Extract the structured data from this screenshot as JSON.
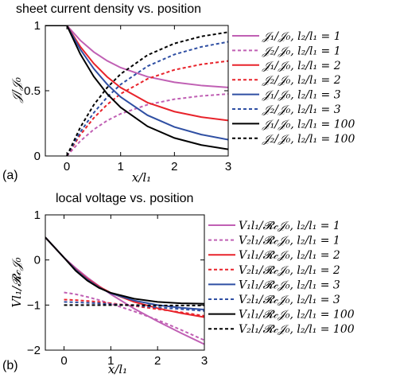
{
  "chart_data": [
    {
      "type": "line",
      "panel_label": "(a)",
      "title": "sheet current density vs. position",
      "xlabel": "x/l₁",
      "ylabel": "𝒥/𝒥₀",
      "xlim": [
        -0.4,
        3
      ],
      "ylim": [
        0,
        1
      ],
      "xticks": [
        0,
        1,
        2,
        3
      ],
      "yticks": [
        0,
        0.5,
        1
      ],
      "ytick_labels": [
        "0",
        "0.5",
        "1"
      ],
      "legend_position": "right",
      "grid": false,
      "series": [
        {
          "name": "𝒥₁/𝒥₀, l₂/l₁ = 1",
          "color": "#c060b4",
          "dash": "solid",
          "x": [
            -0.4,
            0,
            0.25,
            0.5,
            0.75,
            1,
            1.5,
            2,
            2.5,
            3
          ],
          "y": [
            1,
            1,
            0.886,
            0.797,
            0.729,
            0.677,
            0.607,
            0.565,
            0.54,
            0.525
          ]
        },
        {
          "name": "𝒥₂/𝒥₀, l₂/l₁ = 1",
          "color": "#c060b4",
          "dash": "dashed",
          "x": [
            0,
            0.25,
            0.5,
            0.75,
            1,
            1.5,
            2,
            2.5,
            3
          ],
          "y": [
            0,
            0.114,
            0.203,
            0.271,
            0.323,
            0.393,
            0.435,
            0.46,
            0.475
          ]
        },
        {
          "name": "𝒥₁/𝒥₀, l₂/l₁ = 2",
          "color": "#e8232b",
          "dash": "solid",
          "x": [
            -0.4,
            0,
            0.25,
            0.5,
            0.75,
            1,
            1.5,
            2,
            2.5,
            3
          ],
          "y": [
            1,
            1,
            0.838,
            0.709,
            0.606,
            0.524,
            0.409,
            0.34,
            0.298,
            0.272
          ]
        },
        {
          "name": "𝒥₂/𝒥₀, l₂/l₁ = 2",
          "color": "#e8232b",
          "dash": "dashed",
          "x": [
            0,
            0.25,
            0.5,
            0.75,
            1,
            1.5,
            2,
            2.5,
            3
          ],
          "y": [
            0,
            0.162,
            0.291,
            0.394,
            0.476,
            0.591,
            0.66,
            0.702,
            0.728
          ]
        },
        {
          "name": "𝒥₁/𝒥₀, l₂/l₁ = 3",
          "color": "#2f4fa3",
          "dash": "solid",
          "x": [
            -0.4,
            0,
            0.25,
            0.5,
            0.75,
            1,
            1.5,
            2,
            2.5,
            3
          ],
          "y": [
            1,
            1,
            0.817,
            0.669,
            0.549,
            0.452,
            0.312,
            0.222,
            0.164,
            0.125
          ]
        },
        {
          "name": "𝒥₂/𝒥₀, l₂/l₁ = 3",
          "color": "#2f4fa3",
          "dash": "dashed",
          "x": [
            0,
            0.25,
            0.5,
            0.75,
            1,
            1.5,
            2,
            2.5,
            3
          ],
          "y": [
            0,
            0.183,
            0.331,
            0.451,
            0.548,
            0.688,
            0.778,
            0.836,
            0.875
          ]
        },
        {
          "name": "𝒥₁/𝒥₀, l₂/l₁ = 100",
          "color": "#000000",
          "dash": "solid",
          "x": [
            -0.4,
            0,
            0.25,
            0.5,
            0.75,
            1,
            1.5,
            2,
            2.5,
            3
          ],
          "y": [
            1,
            1,
            0.781,
            0.609,
            0.476,
            0.372,
            0.227,
            0.138,
            0.084,
            0.051
          ]
        },
        {
          "name": "𝒥₂/𝒥₀, l₂/l₁ = 100",
          "color": "#000000",
          "dash": "dashed",
          "x": [
            0,
            0.25,
            0.5,
            0.75,
            1,
            1.5,
            2,
            2.5,
            3
          ],
          "y": [
            0,
            0.219,
            0.391,
            0.524,
            0.628,
            0.773,
            0.862,
            0.916,
            0.949
          ]
        }
      ]
    },
    {
      "type": "line",
      "panel_label": "(b)",
      "title": "local voltage vs. position",
      "xlabel": "x/l₁",
      "ylabel": "Vl₁/𝓡𝒸𝒥₀",
      "xlim": [
        -0.4,
        3
      ],
      "ylim": [
        -2,
        1
      ],
      "xticks": [
        0,
        1,
        2,
        3
      ],
      "yticks": [
        -2,
        -1,
        0,
        1
      ],
      "ytick_labels": [
        "−2",
        "−1",
        "0",
        "1"
      ],
      "legend_position": "right",
      "grid": false,
      "series": [
        {
          "name": "V₁l₁/𝓡𝒸𝒥₀, l₂/l₁ = 1",
          "color": "#c060b4",
          "dash": "solid",
          "x": [
            -0.4,
            0,
            0.25,
            0.5,
            0.75,
            1,
            1.5,
            2,
            2.5,
            3
          ],
          "y": [
            0.5,
            0.05,
            -0.18,
            -0.39,
            -0.58,
            -0.76,
            -1.08,
            -1.36,
            -1.62,
            -1.87
          ]
        },
        {
          "name": "V₂l₁/𝓡𝒸𝒥₀, l₂/l₁ = 1",
          "color": "#c060b4",
          "dash": "dashed",
          "x": [
            0,
            0.25,
            0.5,
            0.75,
            1,
            1.5,
            2,
            2.5,
            3
          ],
          "y": [
            -0.72,
            -0.76,
            -0.82,
            -0.89,
            -0.97,
            -1.14,
            -1.33,
            -1.55,
            -1.78
          ]
        },
        {
          "name": "V₁l₁/𝓡𝒸𝒥₀, l₂/l₁ = 2",
          "color": "#e8232b",
          "dash": "solid",
          "x": [
            -0.4,
            0,
            0.25,
            0.5,
            0.75,
            1,
            1.5,
            2,
            2.5,
            3
          ],
          "y": [
            0.5,
            0.05,
            -0.21,
            -0.42,
            -0.59,
            -0.73,
            -0.93,
            -1.07,
            -1.18,
            -1.27
          ]
        },
        {
          "name": "V₂l₁/𝓡𝒸𝒥₀, l₂/l₁ = 2",
          "color": "#e8232b",
          "dash": "dashed",
          "x": [
            0,
            0.25,
            0.5,
            0.75,
            1,
            1.5,
            2,
            2.5,
            3
          ],
          "y": [
            -0.88,
            -0.89,
            -0.91,
            -0.93,
            -0.96,
            -1.02,
            -1.09,
            -1.16,
            -1.24
          ]
        },
        {
          "name": "V₁l₁/𝓡𝒸𝒥₀, l₂/l₁ = 3",
          "color": "#2f4fa3",
          "dash": "solid",
          "x": [
            -0.4,
            0,
            0.25,
            0.5,
            0.75,
            1,
            1.5,
            2,
            2.5,
            3
          ],
          "y": [
            0.5,
            0.05,
            -0.22,
            -0.44,
            -0.61,
            -0.74,
            -0.9,
            -1.0,
            -1.06,
            -1.1
          ]
        },
        {
          "name": "V₂l₁/𝓡𝒸𝒥₀, l₂/l₁ = 3",
          "color": "#2f4fa3",
          "dash": "dashed",
          "x": [
            0,
            0.25,
            0.5,
            0.75,
            1,
            1.5,
            2,
            2.5,
            3
          ],
          "y": [
            -0.93,
            -0.94,
            -0.95,
            -0.96,
            -0.98,
            -1.01,
            -1.05,
            -1.09,
            -1.13
          ]
        },
        {
          "name": "V₁l₁/𝓡𝒸𝒥₀, l₂/l₁ = 100",
          "color": "#000000",
          "dash": "solid",
          "x": [
            -0.4,
            0,
            0.25,
            0.5,
            0.75,
            1,
            1.5,
            2,
            2.5,
            3
          ],
          "y": [
            0.5,
            0.05,
            -0.24,
            -0.46,
            -0.62,
            -0.73,
            -0.86,
            -0.93,
            -0.96,
            -0.97
          ]
        },
        {
          "name": "V₂l₁/𝓡𝒸𝒥₀, l₂/l₁ = 100",
          "color": "#000000",
          "dash": "dashed",
          "x": [
            0,
            0.25,
            0.5,
            0.75,
            1,
            1.5,
            2,
            2.5,
            3
          ],
          "y": [
            -1.0,
            -1.0,
            -1.0,
            -1.0,
            -1.0,
            -1.0,
            -1.01,
            -1.01,
            -1.01
          ]
        }
      ]
    }
  ]
}
